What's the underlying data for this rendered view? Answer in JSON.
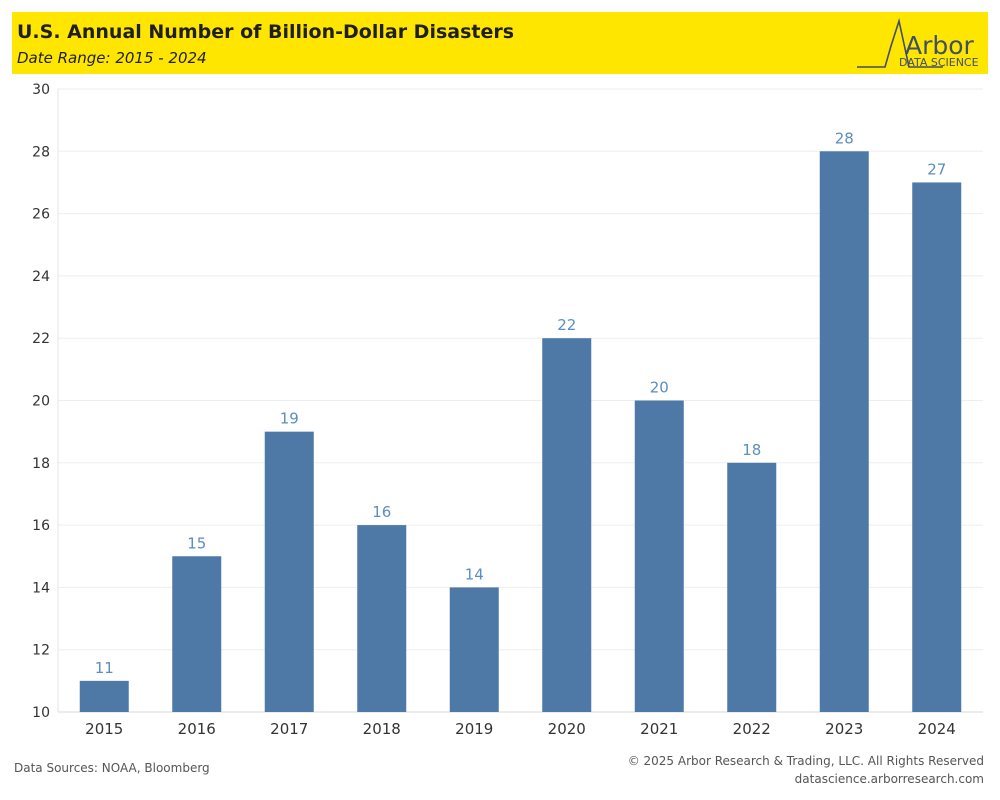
{
  "header": {
    "title": "U.S. Annual Number of Billion-Dollar Disasters",
    "subtitle": "Date Range: 2015 - 2024",
    "background_color": "#FFE600"
  },
  "logo": {
    "name": "Arbor",
    "tagline": "DATA SCIENCE",
    "color": "#3f4e6b"
  },
  "chart_data": {
    "type": "bar",
    "title": "U.S. Annual Number of Billion-Dollar Disasters",
    "subtitle": "Date Range: 2015 - 2024",
    "categories": [
      "2015",
      "2016",
      "2017",
      "2018",
      "2019",
      "2020",
      "2021",
      "2022",
      "2023",
      "2024"
    ],
    "values": [
      11,
      15,
      19,
      16,
      14,
      22,
      20,
      18,
      28,
      27
    ],
    "ylim": [
      10,
      30
    ],
    "yticks": [
      10,
      12,
      14,
      16,
      18,
      20,
      22,
      24,
      26,
      28,
      30
    ],
    "xlabel": "",
    "ylabel": "",
    "grid": true,
    "data_labels": true,
    "bar_color": "#4E79A7",
    "label_color": "#5B8DC2"
  },
  "footer": {
    "sources": "Data Sources: NOAA, Bloomberg",
    "copyright": "© 2025 Arbor Research & Trading, LLC. All Rights Reserved",
    "website": "datascience.arborresearch.com"
  }
}
